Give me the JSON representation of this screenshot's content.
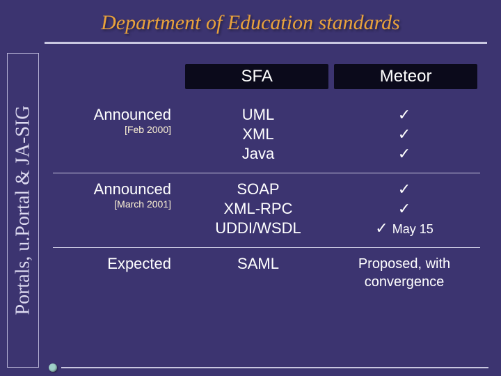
{
  "colors": {
    "background": "#3c3470",
    "title_text": "#e9a23b",
    "title_underline": "#c9c7e0",
    "vlabel_border": "#b8b4d6",
    "vlabel_text": "#dcd9ef",
    "header_bg": "#0b0a1b",
    "header_text": "#ffffff",
    "body_text": "#ffffff",
    "date_text": "#fff4d6",
    "divider": "#c9c7e0",
    "bullet": "#9fd0c9",
    "bottom_rule": "#c9c7e0"
  },
  "fonts": {
    "title_size": 30,
    "vlabel_size": 28,
    "header_size": 24,
    "row_label_size": 22,
    "row_date_size": 14,
    "cell_size": 22,
    "check_size": 22,
    "note_size": 18,
    "proposed_size": 20
  },
  "layout": {
    "header_pad_y": 4,
    "header_pad_x": 10
  },
  "title": "Department of Education standards",
  "vlabel": "Portals, u.Portal & JA-SIG",
  "table": {
    "headers": {
      "left": "",
      "mid": "SFA",
      "right": "Meteor"
    },
    "rows": [
      {
        "label": "Announced",
        "date": "[Feb 2000]",
        "mid": [
          "UML",
          "XML",
          "Java"
        ],
        "right": [
          {
            "check": "✓"
          },
          {
            "check": "✓"
          },
          {
            "check": "✓"
          }
        ]
      },
      {
        "label": "Announced",
        "date": "[March 2001]",
        "mid": [
          "SOAP",
          "XML-RPC",
          "UDDI/WSDL"
        ],
        "right": [
          {
            "check": "✓"
          },
          {
            "check": "✓"
          },
          {
            "check": "✓",
            "note": "May 15"
          }
        ]
      },
      {
        "label": "Expected",
        "date": "",
        "mid": [
          "SAML"
        ],
        "right_text": "Proposed, with convergence"
      }
    ]
  }
}
